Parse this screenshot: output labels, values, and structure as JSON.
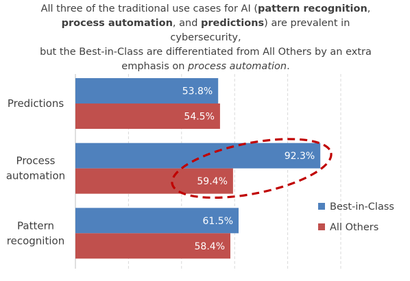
{
  "title": {
    "l1_a": "All three of the traditional use cases for AI (",
    "l1_b": "pattern recognition",
    "l1_c": ",",
    "l2_a": "process automation",
    "l2_b": ", and ",
    "l2_c": "predictions",
    "l2_d": ") are prevalent in cybersecurity,",
    "l3": "but the Best-in-Class are differentiated from All Others by an extra",
    "l4_a": "emphasis on ",
    "l4_b": "process automation",
    "l4_c": "."
  },
  "chart_data": {
    "type": "bar",
    "orientation": "horizontal",
    "categories": [
      [
        "Predictions"
      ],
      [
        "Process",
        "automation"
      ],
      [
        "Pattern",
        "recognition"
      ]
    ],
    "series": [
      {
        "name": "Best-in-Class",
        "color": "#4f81bd",
        "values": [
          53.8,
          92.3,
          61.5
        ],
        "labels": [
          "53.8%",
          "92.3%",
          "61.5%"
        ]
      },
      {
        "name": "All Others",
        "color": "#c0504d",
        "values": [
          54.5,
          59.4,
          58.4
        ],
        "labels": [
          "54.5%",
          "59.4%",
          "58.4%"
        ]
      }
    ],
    "xlim": [
      0,
      100
    ],
    "grid": true,
    "legend": "right",
    "annotation": {
      "type": "dashed-ellipse",
      "category_index": 1,
      "color": "#c00000"
    }
  }
}
